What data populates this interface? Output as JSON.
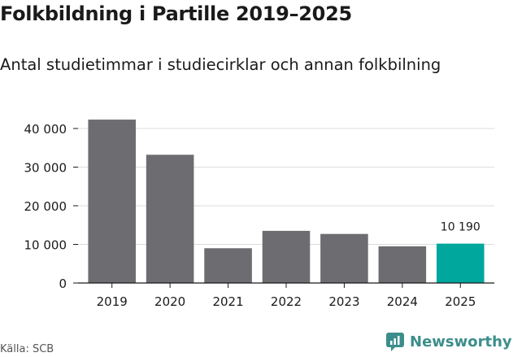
{
  "title": "Folkbildning i Partille 2019–2025",
  "subtitle": "Antal studietimmar i studiecirklar och annan folkbilning",
  "source": "Källa: SCB",
  "brand": "Newsworthy",
  "colors": {
    "bar": "#6d6c70",
    "highlight": "#00a79d",
    "grid": "#dcdcdc",
    "axis": "#1a1a1a",
    "brand": "#3c8e8b"
  },
  "chart_data": {
    "type": "bar",
    "categories": [
      "2019",
      "2020",
      "2021",
      "2022",
      "2023",
      "2024",
      "2025"
    ],
    "values": [
      42300,
      33200,
      9000,
      13500,
      12700,
      9500,
      10190
    ],
    "ylim": [
      0,
      40000
    ],
    "yticks": [
      0,
      10000,
      20000,
      30000,
      40000
    ],
    "ytick_labels": [
      "0",
      "10 000",
      "20 000",
      "30 000",
      "40 000"
    ],
    "highlight_index": 6,
    "highlight_label": "10 190",
    "grid": true,
    "xlabel": "",
    "ylabel": ""
  }
}
